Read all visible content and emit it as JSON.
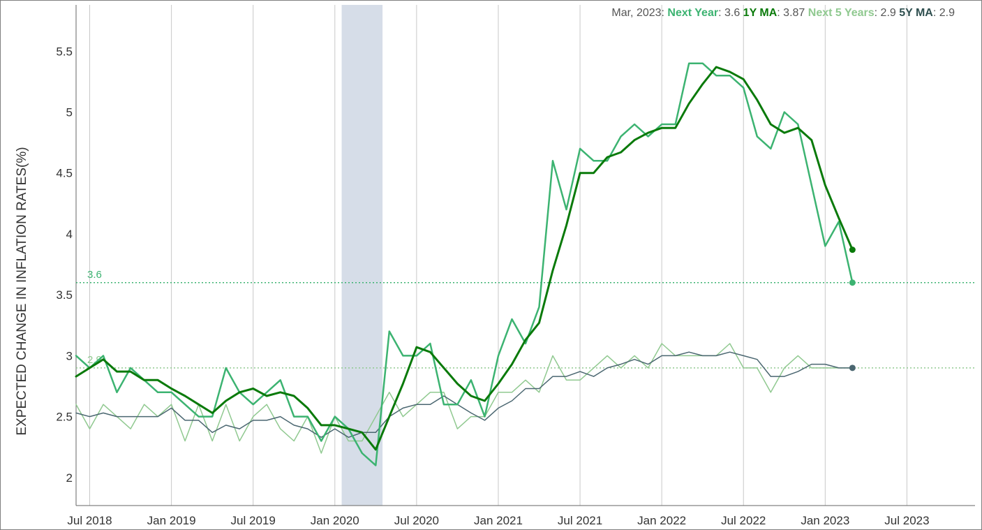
{
  "readout": {
    "date": "Mar, 2023",
    "items": [
      {
        "key": "Next Year",
        "value": "3.6",
        "color": "#3cb371"
      },
      {
        "key": "1Y MA",
        "value": "3.87",
        "color": "#0a7a0a"
      },
      {
        "key": "Next 5 Years",
        "value": "2.9",
        "color": "#90c990"
      },
      {
        "key": "5Y MA",
        "value": "2.9",
        "color": "#2f4f4f"
      }
    ]
  },
  "chart_data": {
    "type": "line",
    "ylabel": "EXPECTED CHANGE IN INFLATION RATES(%)",
    "ylim": [
      1.77,
      5.88
    ],
    "yticks": [
      2,
      2.5,
      3,
      3.5,
      4,
      4.5,
      5,
      5.5
    ],
    "ytick_labels": [
      "2",
      "2.5",
      "3",
      "3.5",
      "4",
      "4.5",
      "5",
      "5.5"
    ],
    "xlim": [
      "2018-06",
      "2023-12"
    ],
    "xticks": [
      "2018-07",
      "2019-01",
      "2019-07",
      "2020-01",
      "2020-07",
      "2021-01",
      "2021-07",
      "2022-01",
      "2022-07",
      "2023-01",
      "2023-07"
    ],
    "xtick_labels": [
      "Jul 2018",
      "Jan 2019",
      "Jul 2019",
      "Jan 2020",
      "Jul 2020",
      "Jan 2021",
      "Jul 2021",
      "Jan 2022",
      "Jul 2022",
      "Jan 2023",
      "Jul 2023"
    ],
    "grid": {
      "vertical": true,
      "horizontal": false
    },
    "recession_band": [
      "2020-02",
      "2020-04"
    ],
    "reference_lines": [
      {
        "value": 3.6,
        "label": "3.6",
        "color": "#3cb371"
      },
      {
        "value": 2.9,
        "label": "2.9",
        "color": "#90c990"
      }
    ],
    "x": [
      "2018-06",
      "2018-07",
      "2018-08",
      "2018-09",
      "2018-10",
      "2018-11",
      "2018-12",
      "2019-01",
      "2019-02",
      "2019-03",
      "2019-04",
      "2019-05",
      "2019-06",
      "2019-07",
      "2019-08",
      "2019-09",
      "2019-10",
      "2019-11",
      "2019-12",
      "2020-01",
      "2020-02",
      "2020-03",
      "2020-04",
      "2020-05",
      "2020-06",
      "2020-07",
      "2020-08",
      "2020-09",
      "2020-10",
      "2020-11",
      "2020-12",
      "2021-01",
      "2021-02",
      "2021-03",
      "2021-04",
      "2021-05",
      "2021-06",
      "2021-07",
      "2021-08",
      "2021-09",
      "2021-10",
      "2021-11",
      "2021-12",
      "2022-01",
      "2022-02",
      "2022-03",
      "2022-04",
      "2022-05",
      "2022-06",
      "2022-07",
      "2022-08",
      "2022-09",
      "2022-10",
      "2022-11",
      "2022-12",
      "2023-01",
      "2023-02",
      "2023-03"
    ],
    "series": [
      {
        "name": "Next Year",
        "color": "#3cb371",
        "width": 2.5,
        "values": [
          3.0,
          2.9,
          3.0,
          2.7,
          2.9,
          2.8,
          2.7,
          2.7,
          2.6,
          2.5,
          2.5,
          2.9,
          2.7,
          2.6,
          2.7,
          2.8,
          2.5,
          2.5,
          2.3,
          2.5,
          2.4,
          2.2,
          2.1,
          3.2,
          3.0,
          3.0,
          3.1,
          2.6,
          2.6,
          2.8,
          2.5,
          3.0,
          3.3,
          3.1,
          3.4,
          4.6,
          4.2,
          4.7,
          4.6,
          4.6,
          4.8,
          4.9,
          4.8,
          4.9,
          4.9,
          5.4,
          5.4,
          5.3,
          5.3,
          5.2,
          4.8,
          4.7,
          5.0,
          4.9,
          4.4,
          3.9,
          4.1,
          3.6
        ],
        "end_marker": true
      },
      {
        "name": "1Y MA",
        "color": "#0a7a0a",
        "width": 3,
        "values": [
          2.83,
          2.9,
          2.97,
          2.87,
          2.87,
          2.8,
          2.8,
          2.73,
          2.67,
          2.6,
          2.53,
          2.63,
          2.7,
          2.73,
          2.67,
          2.7,
          2.67,
          2.57,
          2.43,
          2.43,
          2.4,
          2.37,
          2.23,
          2.5,
          2.77,
          3.07,
          3.03,
          2.9,
          2.77,
          2.67,
          2.63,
          2.77,
          2.93,
          3.13,
          3.27,
          3.7,
          4.07,
          4.5,
          4.5,
          4.63,
          4.67,
          4.77,
          4.83,
          4.87,
          4.87,
          5.07,
          5.23,
          5.37,
          5.33,
          5.27,
          5.1,
          4.9,
          4.83,
          4.87,
          4.77,
          4.4,
          4.13,
          3.87
        ],
        "end_marker": true
      },
      {
        "name": "Next 5 Years",
        "color": "#90c990",
        "width": 1.5,
        "values": [
          2.6,
          2.4,
          2.6,
          2.5,
          2.4,
          2.6,
          2.5,
          2.6,
          2.3,
          2.6,
          2.3,
          2.6,
          2.3,
          2.5,
          2.6,
          2.4,
          2.3,
          2.5,
          2.2,
          2.5,
          2.3,
          2.3,
          2.5,
          2.7,
          2.5,
          2.6,
          2.7,
          2.7,
          2.4,
          2.5,
          2.5,
          2.7,
          2.7,
          2.8,
          2.7,
          3.0,
          2.8,
          2.8,
          2.9,
          3.0,
          2.9,
          3.0,
          2.9,
          3.1,
          3.0,
          3.0,
          3.0,
          3.0,
          3.1,
          2.9,
          2.9,
          2.7,
          2.9,
          3.0,
          2.9,
          2.9,
          2.9,
          2.9
        ],
        "end_marker": false
      },
      {
        "name": "5Y MA",
        "color": "#4a6670",
        "width": 1.5,
        "values": [
          2.53,
          2.5,
          2.53,
          2.5,
          2.5,
          2.5,
          2.5,
          2.57,
          2.47,
          2.47,
          2.37,
          2.43,
          2.4,
          2.47,
          2.47,
          2.5,
          2.43,
          2.4,
          2.33,
          2.4,
          2.33,
          2.37,
          2.37,
          2.5,
          2.57,
          2.6,
          2.6,
          2.67,
          2.6,
          2.53,
          2.47,
          2.57,
          2.63,
          2.73,
          2.73,
          2.83,
          2.83,
          2.87,
          2.83,
          2.9,
          2.93,
          2.97,
          2.93,
          3.0,
          3.0,
          3.03,
          3.0,
          3.0,
          3.03,
          3.0,
          2.97,
          2.83,
          2.83,
          2.87,
          2.93,
          2.93,
          2.9,
          2.9
        ],
        "end_marker": true
      }
    ]
  }
}
